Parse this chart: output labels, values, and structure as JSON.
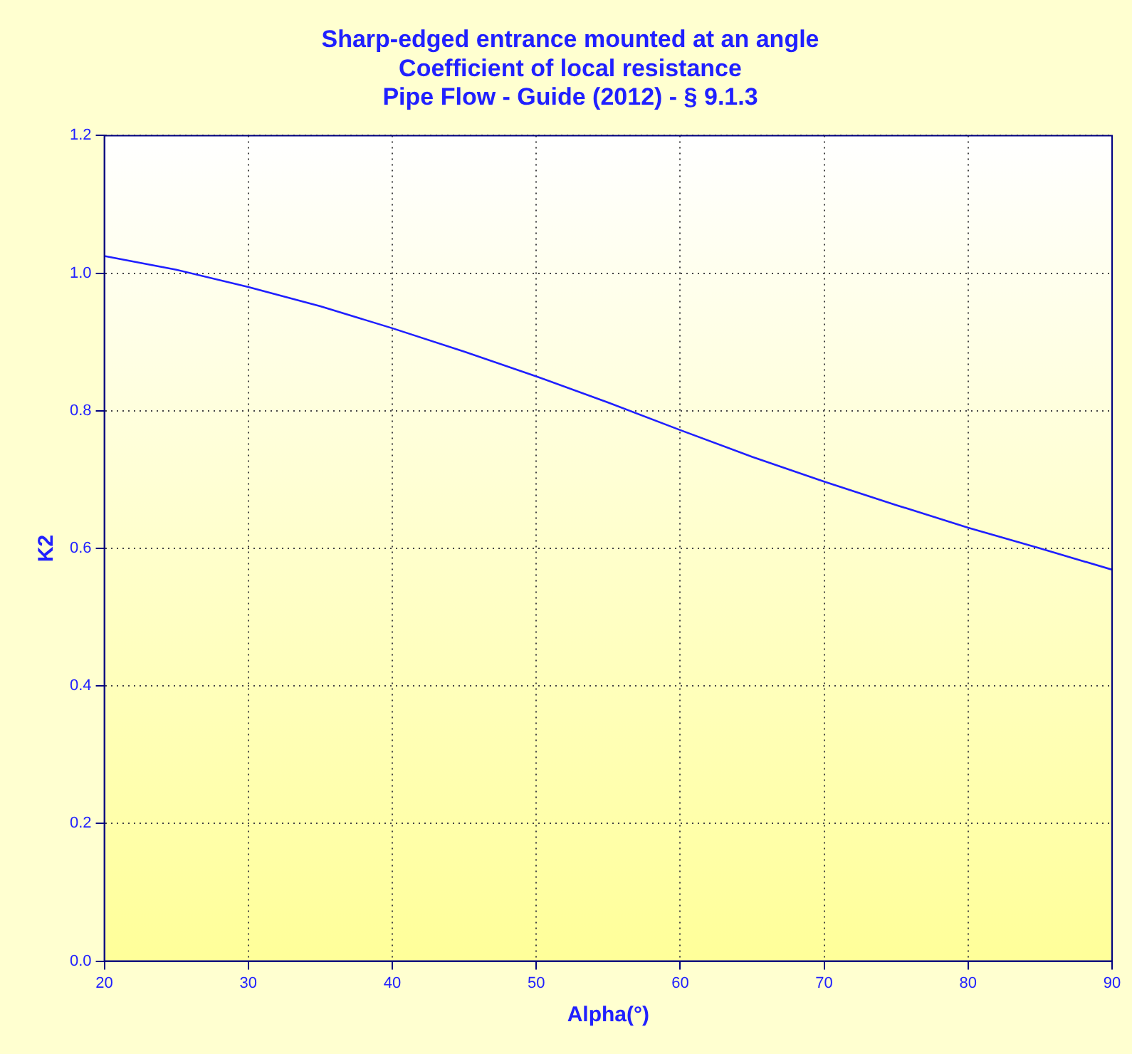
{
  "chart_data": {
    "type": "line",
    "title": [
      "Sharp-edged entrance mounted at an angle",
      "Coefficient of local resistance",
      "Pipe Flow - Guide (2012) - § 9.1.3"
    ],
    "xlabel": "Alpha(°)",
    "ylabel": "K2",
    "x": [
      20,
      25,
      30,
      35,
      40,
      45,
      50,
      55,
      60,
      65,
      70,
      75,
      80,
      85,
      90
    ],
    "series": [
      {
        "color": "#1f1fff",
        "values": [
          1.025,
          1.005,
          0.98,
          0.952,
          0.92,
          0.886,
          0.85,
          0.812,
          0.772,
          0.733,
          0.697,
          0.663,
          0.63,
          0.6,
          0.569
        ]
      }
    ],
    "xlim": [
      20,
      90
    ],
    "xticks": [
      20,
      30,
      40,
      50,
      60,
      70,
      80,
      90
    ],
    "ylim": [
      0,
      1.2
    ],
    "yticks": [
      {
        "value": 0,
        "label": "0.0"
      },
      0.2,
      0.4,
      0.6,
      0.8,
      {
        "value": 1,
        "label": "1.0"
      },
      1.2
    ],
    "grid": true,
    "legend": false,
    "marker": "none",
    "line_style": "solid"
  }
}
